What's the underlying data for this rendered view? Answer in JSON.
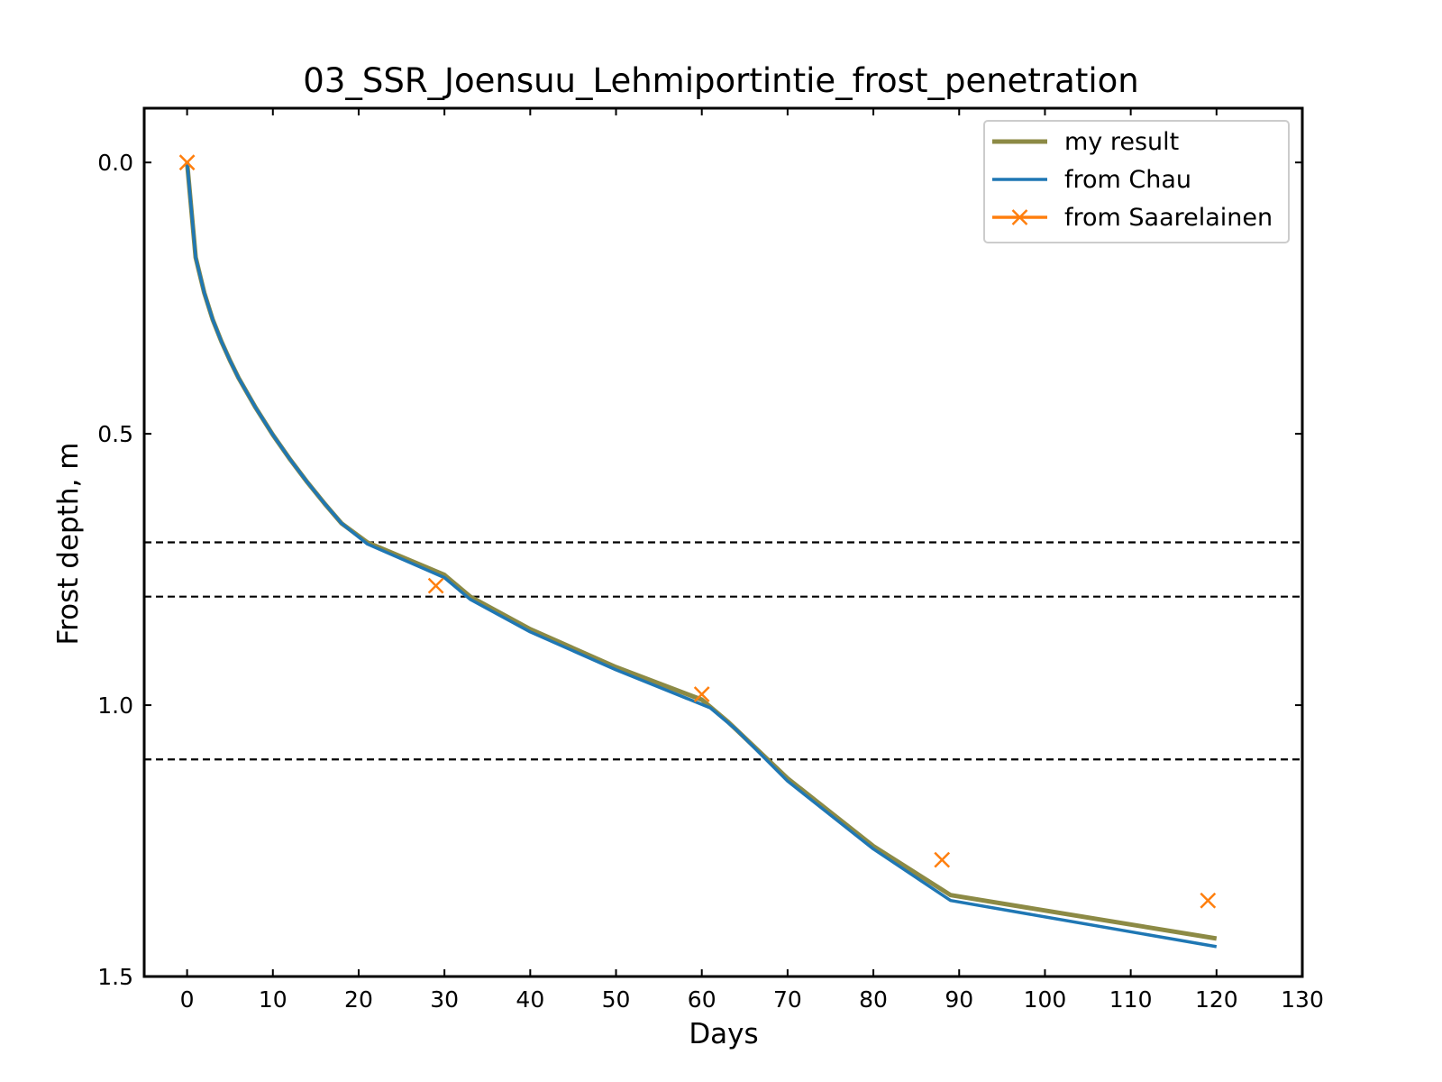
{
  "chart_data": {
    "type": "line",
    "title": "03_SSR_Joensuu_Lehmiportintie_frost_penetration",
    "xlabel": "Days",
    "ylabel": "Frost depth, m",
    "xlim": [
      -5,
      130
    ],
    "ylim": [
      1.5,
      -0.1
    ],
    "y_inverted": true,
    "grid": false,
    "legend_position": "top-right",
    "x_ticks": [
      0,
      10,
      20,
      30,
      40,
      50,
      60,
      70,
      80,
      90,
      100,
      110,
      120,
      130
    ],
    "y_ticks": [
      0.0,
      0.5,
      1.0,
      1.5
    ],
    "x_tick_labels": [
      "0",
      "10",
      "20",
      "30",
      "40",
      "50",
      "60",
      "70",
      "80",
      "90",
      "100",
      "110",
      "120",
      "130"
    ],
    "y_tick_labels": [
      "0.0",
      "0.5",
      "1.0",
      "1.5"
    ],
    "reference_lines": [
      0.7,
      0.8,
      1.1
    ],
    "series": [
      {
        "name": "my result",
        "color": "#8c8a45",
        "marker": "none",
        "x": [
          0,
          1,
          2,
          3,
          4,
          5,
          6,
          8,
          10,
          12,
          14,
          16,
          18,
          21,
          30,
          33,
          40,
          50,
          60,
          63,
          70,
          80,
          89,
          120
        ],
        "y": [
          0.0,
          0.175,
          0.24,
          0.29,
          0.33,
          0.365,
          0.397,
          0.452,
          0.502,
          0.547,
          0.589,
          0.628,
          0.665,
          0.7,
          0.76,
          0.8,
          0.86,
          0.93,
          0.99,
          1.03,
          1.135,
          1.26,
          1.35,
          1.43
        ]
      },
      {
        "name": "from Chau",
        "color": "#1f77b4",
        "marker": "none",
        "x": [
          0,
          1,
          2,
          3,
          4,
          5,
          6,
          8,
          10,
          12,
          14,
          16,
          18,
          21,
          30,
          33,
          40,
          50,
          61,
          64,
          70,
          80,
          89,
          120
        ],
        "y": [
          0.0,
          0.175,
          0.24,
          0.29,
          0.33,
          0.365,
          0.397,
          0.452,
          0.502,
          0.547,
          0.589,
          0.628,
          0.665,
          0.703,
          0.765,
          0.805,
          0.865,
          0.935,
          1.005,
          1.045,
          1.14,
          1.265,
          1.36,
          1.445
        ]
      },
      {
        "name": "from Saarelainen",
        "color": "#ff7f0e",
        "marker": "x",
        "line": "none",
        "x": [
          0,
          29,
          60,
          88,
          119
        ],
        "y": [
          0.0,
          0.78,
          0.98,
          1.285,
          1.36
        ]
      }
    ]
  }
}
